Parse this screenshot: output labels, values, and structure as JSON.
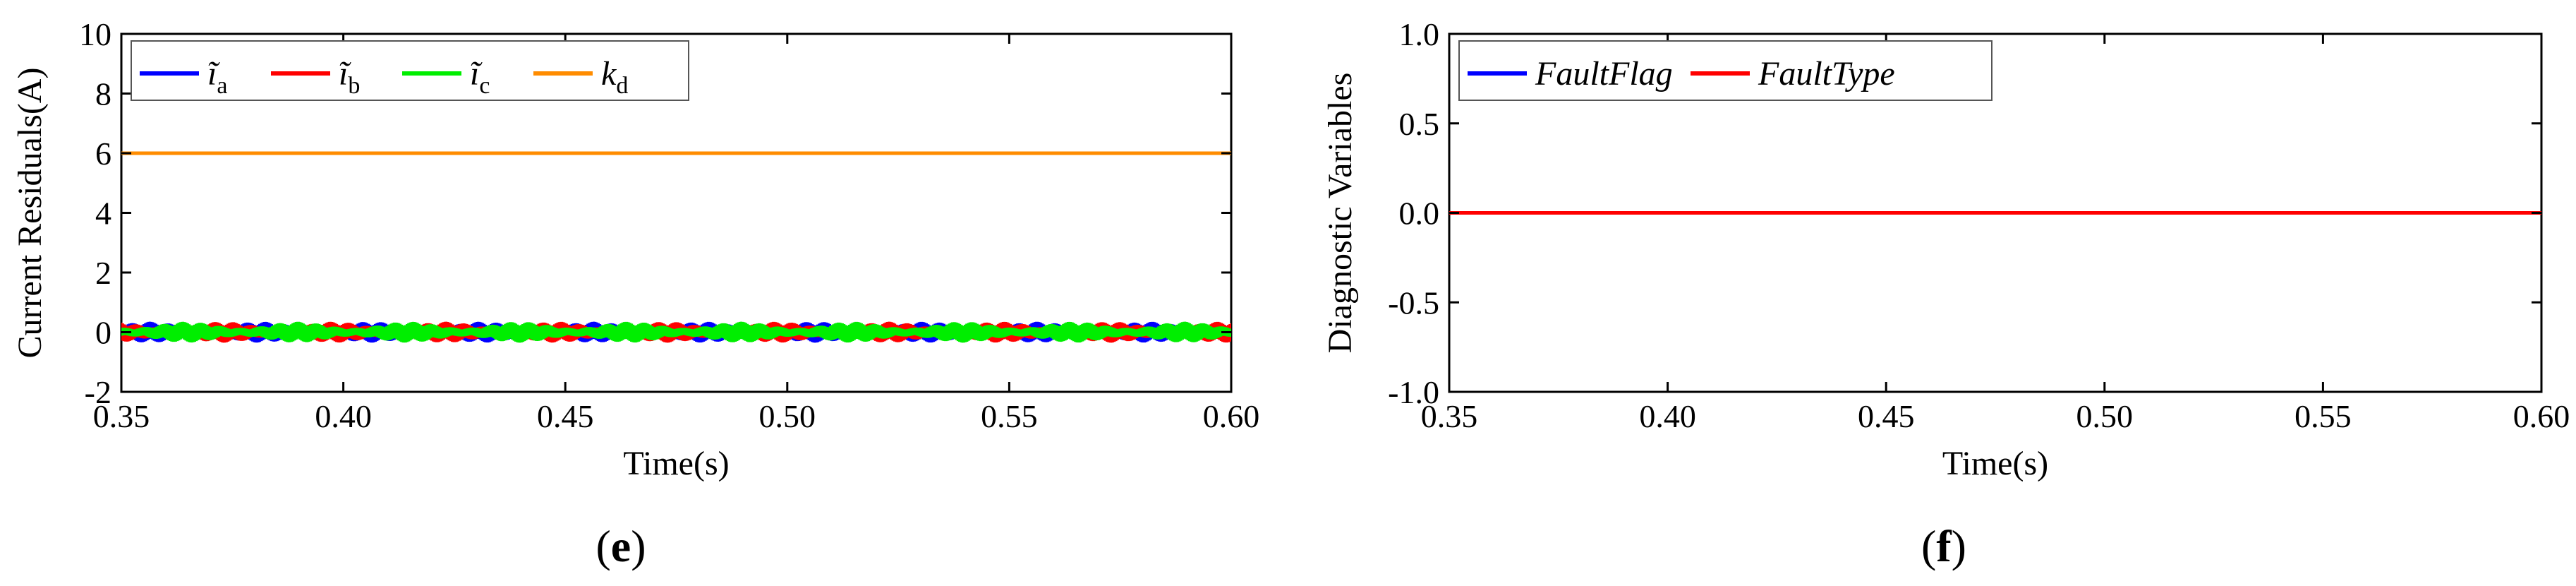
{
  "figure": {
    "panels": [
      {
        "label_text": "(e)",
        "label_bold": "e",
        "label_open": "(",
        "label_close": ")"
      },
      {
        "label_text": "(f)",
        "label_bold": "f",
        "label_open": "(",
        "label_close": ")"
      }
    ]
  },
  "chart_data": [
    {
      "type": "line",
      "xlabel": "Time(s)",
      "ylabel": "Current Residuals(A)",
      "xlim": [
        0.35,
        0.6
      ],
      "ylim": [
        -2,
        10
      ],
      "xticks": [
        "0.35",
        "0.40",
        "0.45",
        "0.50",
        "0.55",
        "0.60"
      ],
      "yticks": [
        "-2",
        "0",
        "2",
        "4",
        "6",
        "8",
        "10"
      ],
      "grid": false,
      "legend_position": "top-left",
      "series": [
        {
          "name": "ĩa",
          "name_base": "ĩ",
          "name_sub": "a",
          "color": "#0000ff",
          "mean": 0.0,
          "amplitude": 0.35,
          "phase_deg": 0
        },
        {
          "name": "ĩb",
          "name_base": "ĩ",
          "name_sub": "b",
          "color": "#ff0000",
          "mean": 0.0,
          "amplitude": 0.35,
          "phase_deg": 120
        },
        {
          "name": "ĩc",
          "name_base": "ĩ",
          "name_sub": "c",
          "color": "#00ee00",
          "mean": 0.0,
          "amplitude": 0.35,
          "phase_deg": 240
        },
        {
          "name": "kd",
          "name_base": "k",
          "name_sub": "d",
          "color": "#ff8c00",
          "x": [
            0.35,
            0.6
          ],
          "y": [
            6,
            6
          ]
        }
      ]
    },
    {
      "type": "line",
      "xlabel": "Time(s)",
      "ylabel": "Diagnostic Variables",
      "xlim": [
        0.35,
        0.6
      ],
      "ylim": [
        -1.0,
        1.0
      ],
      "xticks": [
        "0.35",
        "0.40",
        "0.45",
        "0.50",
        "0.55",
        "0.60"
      ],
      "yticks": [
        "-1.0",
        "-0.5",
        "0.0",
        "0.5",
        "1.0"
      ],
      "grid": false,
      "legend_position": "top-left",
      "series": [
        {
          "name": "FaultFlag",
          "color": "#0000ff",
          "x": [
            0.35,
            0.6
          ],
          "y": [
            0,
            0
          ]
        },
        {
          "name": "FaultType",
          "color": "#ff0000",
          "x": [
            0.35,
            0.6
          ],
          "y": [
            0,
            0
          ]
        }
      ]
    }
  ]
}
